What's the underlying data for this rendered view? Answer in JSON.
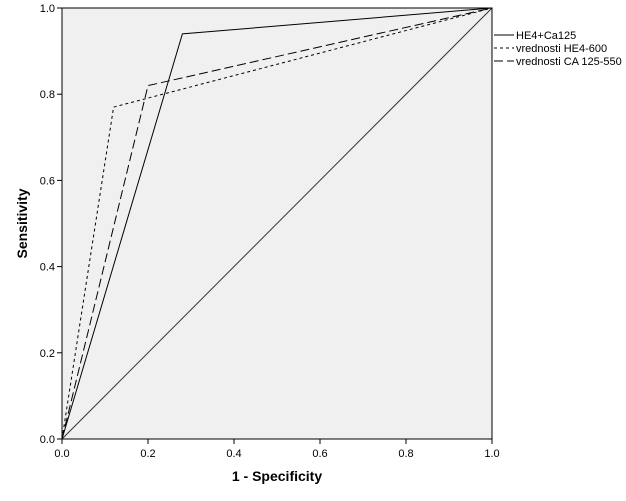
{
  "chart_data": {
    "type": "line",
    "title": "",
    "xlabel": "1 - Specificity",
    "ylabel": "Sensitivity",
    "xlim": [
      0,
      1
    ],
    "ylim": [
      0,
      1
    ],
    "x_ticks": [
      "0.0",
      "0.2",
      "0.4",
      "0.6",
      "0.8",
      "1.0"
    ],
    "y_ticks": [
      "0.0",
      "0.2",
      "0.4",
      "0.6",
      "0.8",
      "1.0"
    ],
    "x_tick_values": [
      0,
      0.2,
      0.4,
      0.6,
      0.8,
      1.0
    ],
    "y_tick_values": [
      0,
      0.2,
      0.4,
      0.6,
      0.8,
      1.0
    ],
    "grid": false,
    "legend_position": "right",
    "plot_background": "#f0f0f0",
    "series": [
      {
        "name": "HE4+Ca125",
        "style": "solid",
        "points": [
          [
            0,
            0
          ],
          [
            0.28,
            0.94
          ],
          [
            1,
            1
          ]
        ]
      },
      {
        "name": "vrednosti HE4-600",
        "style": "dotted",
        "points": [
          [
            0,
            0
          ],
          [
            0.12,
            0.77
          ],
          [
            1,
            1
          ]
        ]
      },
      {
        "name": "vrednosti CA 125-550",
        "style": "dashed",
        "points": [
          [
            0,
            0
          ],
          [
            0.2,
            0.82
          ],
          [
            1,
            1
          ]
        ]
      }
    ]
  }
}
